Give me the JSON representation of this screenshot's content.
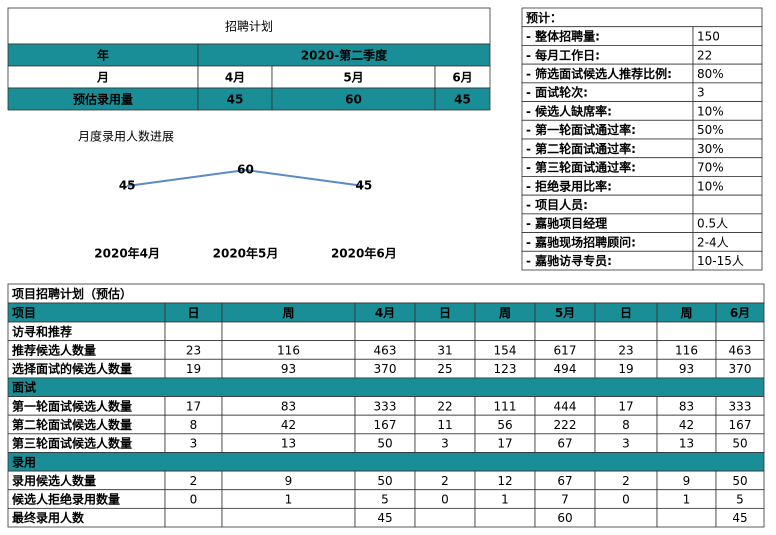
{
  "plan_table": {
    "title": "招聘计划",
    "year_label": "年",
    "year_value": "2020-第二季度",
    "month_label": "月",
    "months": [
      "4月",
      "5月",
      "6月"
    ],
    "estimate_label": "预估录用量",
    "estimates": [
      45,
      60,
      45
    ],
    "header_color": "#1a8e96"
  },
  "chart_data": {
    "type": "line",
    "title": "月度录用人数进展",
    "categories": [
      "2020年4月",
      "2020年5月",
      "2020年6月"
    ],
    "values": [
      45,
      60,
      45
    ],
    "color": "#5b8ac6",
    "label_color": "#e07b20"
  },
  "summary": {
    "title": "预计：",
    "items": [
      {
        "label": "- 整体招聘量:",
        "value": "150"
      },
      {
        "label": "- 每月工作日:",
        "value": "22"
      },
      {
        "label": "- 筛选面试候选人推荐比例:",
        "value": "80%"
      },
      {
        "label": "- 面试轮次:",
        "value": "3"
      },
      {
        "label": "- 候选人缺席率:",
        "value": "10%"
      },
      {
        "label": "- 第一轮面试通过率:",
        "value": "50%"
      },
      {
        "label": "- 第二轮面试通过率:",
        "value": "30%"
      },
      {
        "label": "- 第三轮面试通过率:",
        "value": "70%"
      },
      {
        "label": "- 拒绝录用比率:",
        "value": "10%"
      },
      {
        "label": "- 项目人员:",
        "value": null
      },
      {
        "label": "- 嘉驰项目经理",
        "value": "0.5人"
      },
      {
        "label": "- 嘉驰现场招聘顾问:",
        "value": "2-4人"
      },
      {
        "label": "- 嘉驰访寻专员:",
        "value": "10-15人"
      }
    ]
  },
  "project_table": {
    "title": "项目招聘计划（预估）",
    "header_color": "#1a8e96",
    "columns": [
      "项目",
      "日",
      "周",
      "4月",
      "日",
      "周",
      "5月",
      "日",
      "周",
      "6月"
    ],
    "rows": [
      {
        "section": "访寻和推荐",
        "fill": "#ffffff"
      },
      {
        "label": "推荐候选人数量",
        "cells": [
          23,
          116,
          463,
          31,
          154,
          617,
          23,
          116,
          463
        ]
      },
      {
        "label": "选择面试的候选人数量",
        "cells": [
          19,
          93,
          370,
          25,
          123,
          494,
          19,
          93,
          370
        ]
      },
      {
        "section": "面试",
        "fill": "#1a8e96"
      },
      {
        "label": "第一轮面试候选人数量",
        "cells": [
          17,
          83,
          333,
          22,
          111,
          444,
          17,
          83,
          333
        ]
      },
      {
        "label": "第二轮面试候选人数量",
        "cells": [
          8,
          42,
          167,
          11,
          56,
          222,
          8,
          42,
          167
        ]
      },
      {
        "label": "第三轮面试候选人数量",
        "cells": [
          3,
          13,
          50,
          3,
          17,
          67,
          3,
          13,
          50
        ]
      },
      {
        "section": "录用",
        "fill": "#1a8e96"
      },
      {
        "label": "录用候选人数量",
        "cells": [
          2,
          9,
          50,
          2,
          12,
          67,
          2,
          9,
          50
        ]
      },
      {
        "label": "候选人拒绝录用数量",
        "cells": [
          0,
          1,
          5,
          0,
          1,
          7,
          0,
          1,
          5
        ]
      },
      {
        "label": "最终录用人数",
        "cells": [
          null,
          null,
          45,
          null,
          null,
          60,
          null,
          null,
          45
        ]
      }
    ]
  }
}
